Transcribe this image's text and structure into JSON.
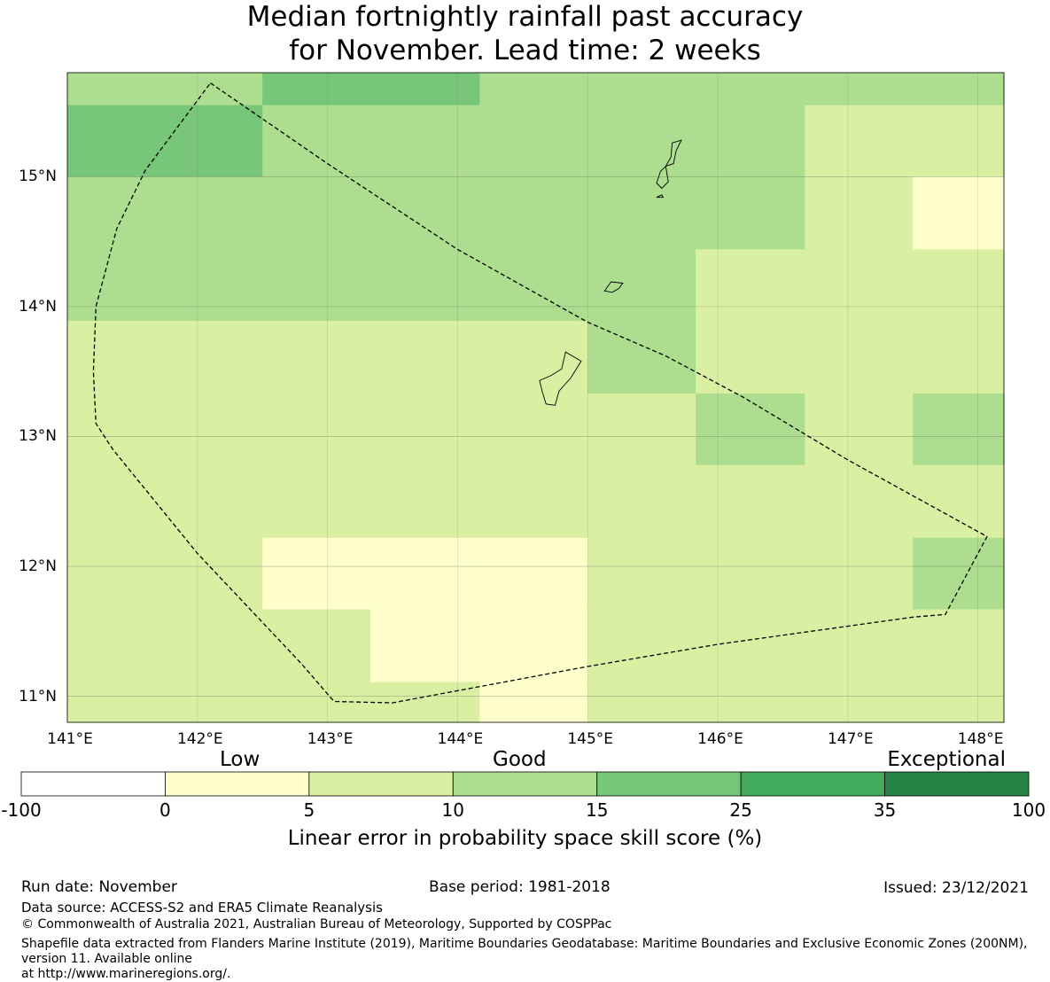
{
  "title": {
    "line1": "Median fortnightly rainfall past accuracy",
    "line2": "for November. Lead time: 2 weeks"
  },
  "map": {
    "lon_range": [
      141.0,
      148.2
    ],
    "lat_range": [
      10.8,
      15.8
    ],
    "lat_ticks": [
      {
        "value": 15,
        "label": "15°N"
      },
      {
        "value": 14,
        "label": "14°N"
      },
      {
        "value": 13,
        "label": "13°N"
      },
      {
        "value": 12,
        "label": "12°N"
      },
      {
        "value": 11,
        "label": "11°N"
      }
    ],
    "lon_ticks": [
      {
        "value": 141,
        "label": "141°E"
      },
      {
        "value": 142,
        "label": "142°E"
      },
      {
        "value": 143,
        "label": "143°E"
      },
      {
        "value": 144,
        "label": "144°E"
      },
      {
        "value": 145,
        "label": "145°E"
      },
      {
        "value": 146,
        "label": "146°E"
      },
      {
        "value": 147,
        "label": "147°E"
      },
      {
        "value": 148,
        "label": "148°E"
      }
    ],
    "grid_on": true,
    "cells": [
      {
        "lon": [
          141.0,
          142.5
        ],
        "lat": [
          15.55,
          15.8
        ],
        "color": "#addd8e"
      },
      {
        "lon": [
          142.5,
          144.17
        ],
        "lat": [
          15.55,
          15.8
        ],
        "color": "#78c679"
      },
      {
        "lon": [
          144.17,
          148.2
        ],
        "lat": [
          15.55,
          15.8
        ],
        "color": "#addd8e"
      },
      {
        "lon": [
          141.0,
          142.5
        ],
        "lat": [
          15.0,
          15.55
        ],
        "color": "#78c679"
      },
      {
        "lon": [
          142.5,
          146.67
        ],
        "lat": [
          15.0,
          15.55
        ],
        "color": "#addd8e"
      },
      {
        "lon": [
          146.67,
          148.2
        ],
        "lat": [
          15.0,
          15.55
        ],
        "color": "#d9f0a3"
      },
      {
        "lon": [
          141.0,
          146.67
        ],
        "lat": [
          14.44,
          15.0
        ],
        "color": "#addd8e"
      },
      {
        "lon": [
          146.67,
          147.5
        ],
        "lat": [
          14.44,
          15.0
        ],
        "color": "#d9f0a3"
      },
      {
        "lon": [
          147.5,
          148.2
        ],
        "lat": [
          14.44,
          15.0
        ],
        "color": "#ffffcc"
      },
      {
        "lon": [
          141.0,
          145.83
        ],
        "lat": [
          13.89,
          14.44
        ],
        "color": "#addd8e"
      },
      {
        "lon": [
          145.83,
          148.2
        ],
        "lat": [
          13.89,
          14.44
        ],
        "color": "#d9f0a3"
      },
      {
        "lon": [
          141.0,
          145.0
        ],
        "lat": [
          13.33,
          13.89
        ],
        "color": "#d9f0a3"
      },
      {
        "lon": [
          145.0,
          145.83
        ],
        "lat": [
          13.33,
          13.89
        ],
        "color": "#addd8e"
      },
      {
        "lon": [
          145.83,
          148.2
        ],
        "lat": [
          13.33,
          13.89
        ],
        "color": "#d9f0a3"
      },
      {
        "lon": [
          141.0,
          145.83
        ],
        "lat": [
          12.78,
          13.33
        ],
        "color": "#d9f0a3"
      },
      {
        "lon": [
          145.83,
          146.67
        ],
        "lat": [
          12.78,
          13.33
        ],
        "color": "#addd8e"
      },
      {
        "lon": [
          146.67,
          147.5
        ],
        "lat": [
          12.78,
          13.33
        ],
        "color": "#d9f0a3"
      },
      {
        "lon": [
          147.5,
          148.2
        ],
        "lat": [
          12.78,
          13.33
        ],
        "color": "#addd8e"
      },
      {
        "lon": [
          141.0,
          148.2
        ],
        "lat": [
          12.22,
          12.78
        ],
        "color": "#d9f0a3"
      },
      {
        "lon": [
          141.0,
          142.5
        ],
        "lat": [
          11.67,
          12.22
        ],
        "color": "#d9f0a3"
      },
      {
        "lon": [
          142.5,
          145.0
        ],
        "lat": [
          11.67,
          12.22
        ],
        "color": "#ffffcc"
      },
      {
        "lon": [
          145.0,
          147.5
        ],
        "lat": [
          11.67,
          12.22
        ],
        "color": "#d9f0a3"
      },
      {
        "lon": [
          147.5,
          148.2
        ],
        "lat": [
          11.67,
          12.22
        ],
        "color": "#addd8e"
      },
      {
        "lon": [
          141.0,
          143.33
        ],
        "lat": [
          11.11,
          11.67
        ],
        "color": "#d9f0a3"
      },
      {
        "lon": [
          143.33,
          145.0
        ],
        "lat": [
          11.11,
          11.67
        ],
        "color": "#ffffcc"
      },
      {
        "lon": [
          145.0,
          148.2
        ],
        "lat": [
          11.11,
          11.67
        ],
        "color": "#d9f0a3"
      },
      {
        "lon": [
          141.0,
          144.17
        ],
        "lat": [
          10.8,
          11.11
        ],
        "color": "#d9f0a3"
      },
      {
        "lon": [
          144.17,
          145.0
        ],
        "lat": [
          10.8,
          11.11
        ],
        "color": "#ffffcc"
      },
      {
        "lon": [
          145.0,
          148.2
        ],
        "lat": [
          10.8,
          11.11
        ],
        "color": "#d9f0a3"
      }
    ],
    "eez_boundary": [
      [
        142.1,
        15.72
      ],
      [
        143.0,
        15.1
      ],
      [
        144.0,
        14.44
      ],
      [
        145.0,
        13.88
      ],
      [
        145.6,
        13.62
      ],
      [
        146.2,
        13.3
      ],
      [
        147.0,
        12.82
      ],
      [
        148.07,
        12.23
      ],
      [
        147.75,
        11.63
      ],
      [
        147.5,
        11.61
      ],
      [
        146.0,
        11.4
      ],
      [
        145.0,
        11.23
      ],
      [
        143.5,
        10.95
      ],
      [
        143.05,
        10.96
      ],
      [
        142.8,
        11.25
      ],
      [
        142.0,
        12.1
      ],
      [
        141.35,
        12.9
      ],
      [
        141.22,
        13.1
      ],
      [
        141.2,
        13.5
      ],
      [
        141.22,
        14.0
      ],
      [
        141.38,
        14.6
      ],
      [
        141.6,
        15.05
      ],
      [
        142.1,
        15.72
      ]
    ],
    "islands": [
      [
        [
          144.95,
          13.58
        ],
        [
          144.83,
          13.65
        ],
        [
          144.8,
          13.52
        ],
        [
          144.72,
          13.47
        ],
        [
          144.63,
          13.43
        ],
        [
          144.65,
          13.35
        ],
        [
          144.68,
          13.25
        ],
        [
          144.75,
          13.24
        ],
        [
          144.78,
          13.35
        ],
        [
          144.87,
          13.45
        ],
        [
          144.95,
          13.58
        ]
      ],
      [
        [
          145.27,
          14.18
        ],
        [
          145.18,
          14.19
        ],
        [
          145.13,
          14.12
        ],
        [
          145.19,
          14.11
        ],
        [
          145.24,
          14.14
        ],
        [
          145.27,
          14.18
        ]
      ],
      [
        [
          145.65,
          15.26
        ],
        [
          145.72,
          15.28
        ],
        [
          145.68,
          15.2
        ],
        [
          145.66,
          15.1
        ],
        [
          145.6,
          15.08
        ],
        [
          145.64,
          15.15
        ],
        [
          145.65,
          15.26
        ]
      ],
      [
        [
          145.6,
          15.08
        ],
        [
          145.56,
          15.04
        ],
        [
          145.53,
          14.95
        ],
        [
          145.57,
          14.91
        ],
        [
          145.62,
          14.96
        ],
        [
          145.6,
          15.08
        ]
      ],
      [
        [
          145.57,
          14.86
        ],
        [
          145.53,
          14.84
        ],
        [
          145.58,
          14.84
        ],
        [
          145.57,
          14.86
        ]
      ]
    ]
  },
  "colorbar": {
    "categories": [
      {
        "name": "Low",
        "value": 0
      },
      {
        "name": "Good",
        "value": 10
      },
      {
        "name": "Exceptional",
        "value": 100
      }
    ],
    "ticks": [
      "-100",
      "0",
      "5",
      "10",
      "15",
      "25",
      "35",
      "100"
    ],
    "colors": [
      "#ffffff",
      "#ffffcc",
      "#d9f0a3",
      "#addd8e",
      "#78c679",
      "#41ab5d",
      "#238443"
    ],
    "label": "Linear error in probability space skill score (%)"
  },
  "footer": {
    "run_date": "Run date: November",
    "base_period": "Base period: 1981-2018",
    "issued": "Issued: 23/12/2021",
    "data_source": "Data source: ACCESS-S2 and ERA5 Climate Reanalysis",
    "copyright": "© Commonwealth of Australia 2021, Australian Bureau of Meteorology, Supported by COSPPac",
    "shapefile_line1": "Shapefile data extracted from Flanders Marine Institute (2019), Maritime Boundaries Geodatabase: Maritime Boundaries and Exclusive Economic Zones (200NM), version 11. Available online",
    "shapefile_line2": "at http://www.marineregions.org/."
  }
}
